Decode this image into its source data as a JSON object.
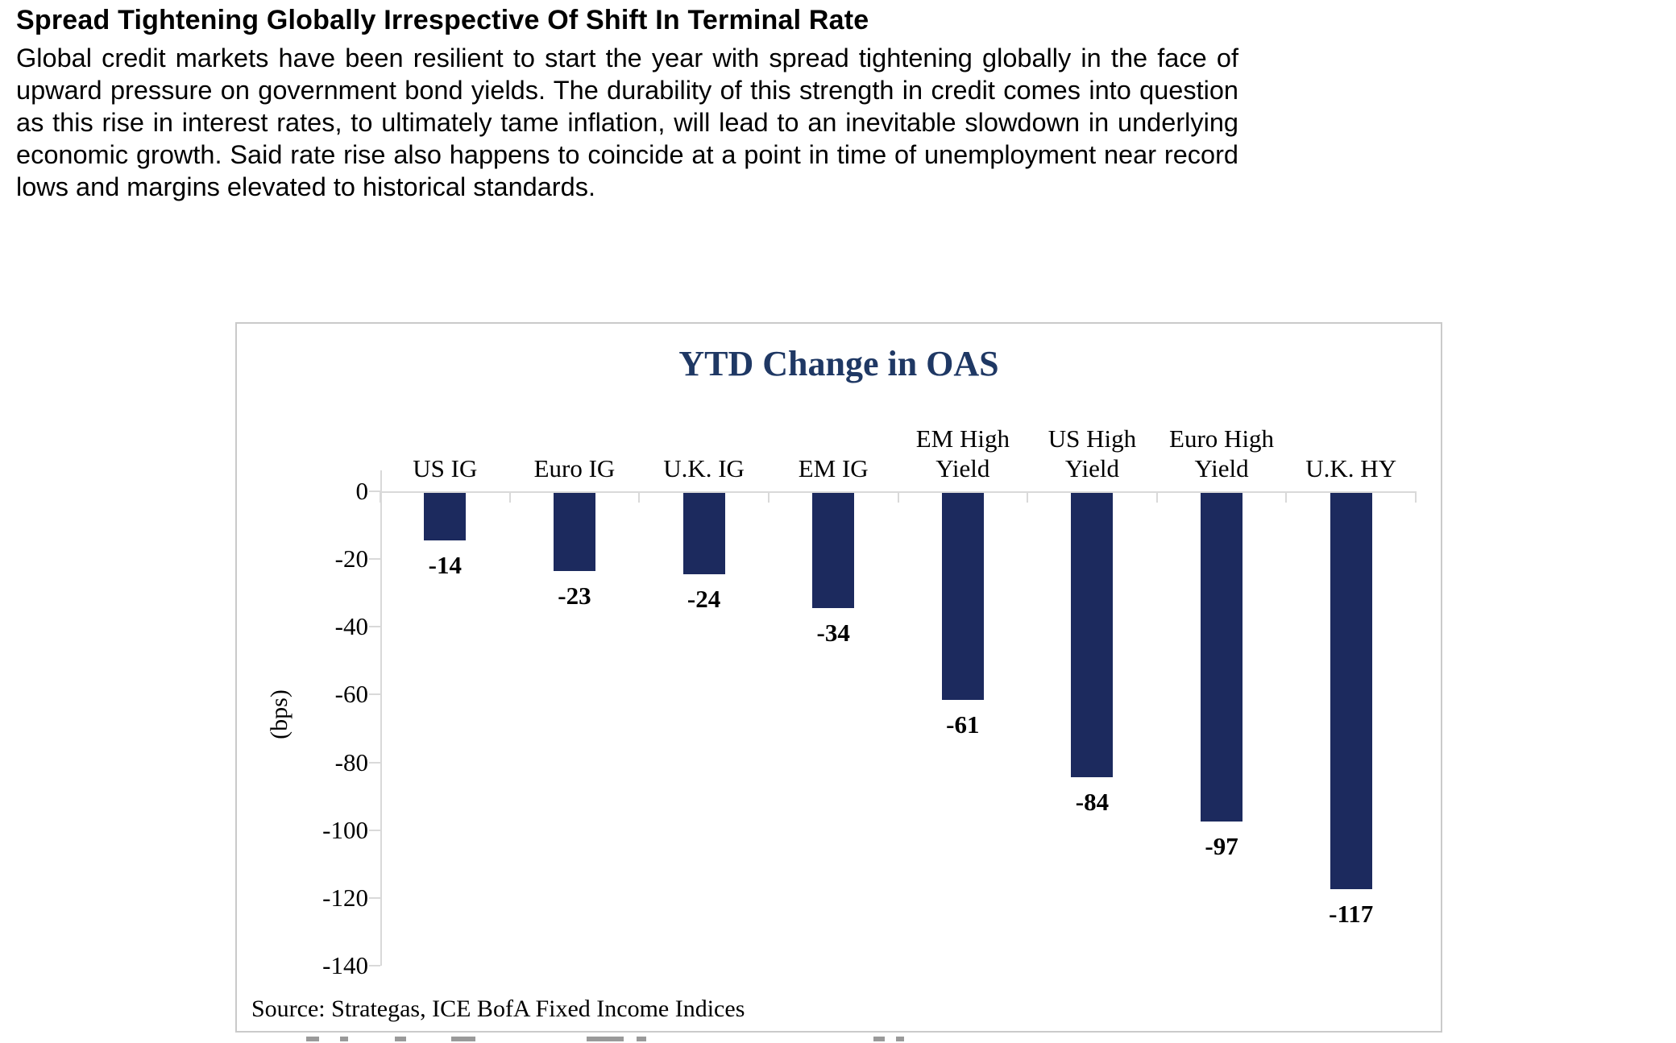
{
  "page": {
    "heading": "Spread Tightening Globally Irrespective Of Shift In Terminal Rate",
    "paragraph": "Global credit markets have been resilient to start the year with spread tightening globally in the face of upward pressure on government bond yields. The durability of this strength in credit comes into question as this rise in interest rates, to ultimately tame inflation, will lead to an inevitable slowdown in underlying economic growth. Said rate rise also happens to coincide at a point in time of unemployment near record lows and margins elevated to historical standards."
  },
  "chart_data": {
    "type": "bar",
    "title": "YTD Change in OAS",
    "categories": [
      "US IG",
      "Euro IG",
      "U.K. IG",
      "EM IG",
      "EM High Yield",
      "US High Yield",
      "Euro High Yield",
      "U.K. HY"
    ],
    "values": [
      -14,
      -23,
      -24,
      -34,
      -61,
      -84,
      -97,
      -117
    ],
    "ylabel": "(bps)",
    "ylim": [
      -140,
      0
    ],
    "ytick_step": 20,
    "yticks": [
      0,
      -20,
      -40,
      -60,
      -80,
      -100,
      -120,
      -140
    ],
    "data_label_position": "below-bar-end",
    "grid": false,
    "legend": false,
    "bar_color": "#1c2a5e",
    "title_color": "#1f3864",
    "axis_color": "#d9d9d9",
    "source": "Source: Strategas, ICE BofA Fixed Income Indices"
  }
}
